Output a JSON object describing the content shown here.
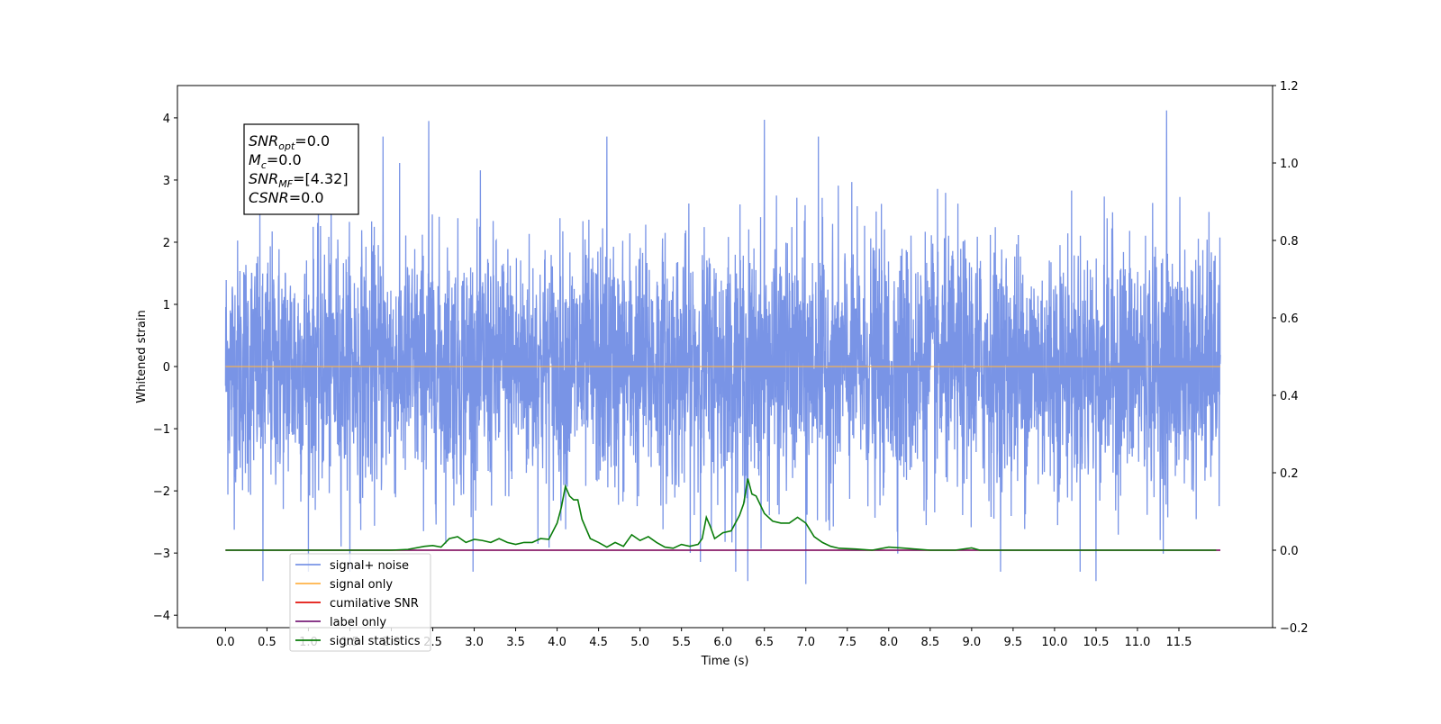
{
  "chart_data": {
    "type": "line",
    "xlabel": "Time (s)",
    "ylabel": "Whitened strain",
    "xlim": [
      -0.58,
      12.63
    ],
    "ylim": [
      -4.2,
      4.52
    ],
    "y2lim": [
      -0.2,
      1.2
    ],
    "x_ticks": [
      "0.0",
      "0.5",
      "1.0",
      "1.5",
      "2.0",
      "2.5",
      "3.0",
      "3.5",
      "4.0",
      "4.5",
      "5.0",
      "5.5",
      "6.0",
      "6.5",
      "7.0",
      "7.5",
      "8.0",
      "8.5",
      "9.0",
      "9.5",
      "10.0",
      "10.5",
      "11.0",
      "11.5"
    ],
    "y_ticks": [
      "−4",
      "−3",
      "−2",
      "−1",
      "0",
      "1",
      "2",
      "3",
      "4"
    ],
    "y2_ticks": [
      "−0.2",
      "0.0",
      "0.2",
      "0.4",
      "0.6",
      "0.8",
      "1.0",
      "1.2"
    ],
    "legend_position": "lower-left",
    "annotation": [
      {
        "name": "SNR",
        "sub": "opt",
        "value": "=0.0"
      },
      {
        "name": "M",
        "sub": "c",
        "value": "=0.0"
      },
      {
        "name": "SNR",
        "sub": "MF",
        "value": "=[4.32]"
      },
      {
        "name": "CSNR",
        "sub": "",
        "value": "=0.0"
      }
    ],
    "series": [
      {
        "name": "signal+ noise",
        "color": "#7994e6",
        "axis": "left",
        "kind": "noise",
        "x_range": [
          0.0,
          12.0
        ],
        "envelope": [
          -3.5,
          4.1
        ],
        "typical_std": 1.0,
        "spikes": [
          [
            2.45,
            3.95
          ],
          [
            6.5,
            3.97
          ],
          [
            11.35,
            4.12
          ],
          [
            6.3,
            -3.45
          ],
          [
            7.0,
            -3.5
          ],
          [
            10.5,
            -3.45
          ],
          [
            0.45,
            -3.45
          ],
          [
            1.9,
            3.7
          ],
          [
            4.6,
            3.7
          ],
          [
            7.15,
            3.7
          ]
        ]
      },
      {
        "name": "signal only",
        "color": "#ffb347",
        "axis": "left",
        "x": [
          0.0,
          12.0
        ],
        "y": [
          0.0,
          0.0
        ]
      },
      {
        "name": "cumilative SNR",
        "color": "#e3120b",
        "axis": "right",
        "x": [
          0.0,
          12.0
        ],
        "y": [
          0.0,
          0.0
        ]
      },
      {
        "name": "label only",
        "color": "#7a1f7a",
        "axis": "right",
        "x": [
          0.0,
          12.0
        ],
        "y": [
          0.0,
          0.0
        ]
      },
      {
        "name": "signal statistics",
        "color": "#0a7d0a",
        "axis": "right",
        "x": [
          0.0,
          0.5,
          1.0,
          1.5,
          2.0,
          2.2,
          2.4,
          2.5,
          2.6,
          2.7,
          2.8,
          2.9,
          3.0,
          3.1,
          3.2,
          3.3,
          3.4,
          3.5,
          3.6,
          3.7,
          3.8,
          3.9,
          4.0,
          4.05,
          4.1,
          4.15,
          4.2,
          4.25,
          4.3,
          4.4,
          4.5,
          4.6,
          4.7,
          4.8,
          4.9,
          5.0,
          5.1,
          5.2,
          5.3,
          5.4,
          5.5,
          5.6,
          5.7,
          5.75,
          5.8,
          5.85,
          5.9,
          6.0,
          6.1,
          6.2,
          6.25,
          6.3,
          6.35,
          6.4,
          6.5,
          6.6,
          6.7,
          6.8,
          6.9,
          7.0,
          7.1,
          7.2,
          7.3,
          7.4,
          7.6,
          7.8,
          8.0,
          8.2,
          8.5,
          8.8,
          9.0,
          9.1,
          9.2,
          9.5,
          10.0,
          10.5,
          11.0,
          11.5,
          11.95
        ],
        "y": [
          0,
          0,
          0,
          0,
          0,
          0.002,
          0.01,
          0.012,
          0.008,
          0.03,
          0.035,
          0.02,
          0.028,
          0.025,
          0.02,
          0.03,
          0.02,
          0.015,
          0.02,
          0.02,
          0.03,
          0.028,
          0.07,
          0.11,
          0.165,
          0.14,
          0.13,
          0.13,
          0.08,
          0.03,
          0.02,
          0.008,
          0.02,
          0.01,
          0.04,
          0.025,
          0.035,
          0.02,
          0.008,
          0.005,
          0.015,
          0.01,
          0.015,
          0.03,
          0.085,
          0.06,
          0.03,
          0.045,
          0.05,
          0.09,
          0.12,
          0.185,
          0.145,
          0.14,
          0.095,
          0.075,
          0.07,
          0.07,
          0.085,
          0.07,
          0.035,
          0.02,
          0.01,
          0.005,
          0.003,
          0.0,
          0.008,
          0.005,
          0.0,
          0.0,
          0.006,
          0.0,
          0.0,
          0.0,
          0.0,
          0.0,
          0.0,
          0.0,
          0.0
        ]
      }
    ]
  }
}
